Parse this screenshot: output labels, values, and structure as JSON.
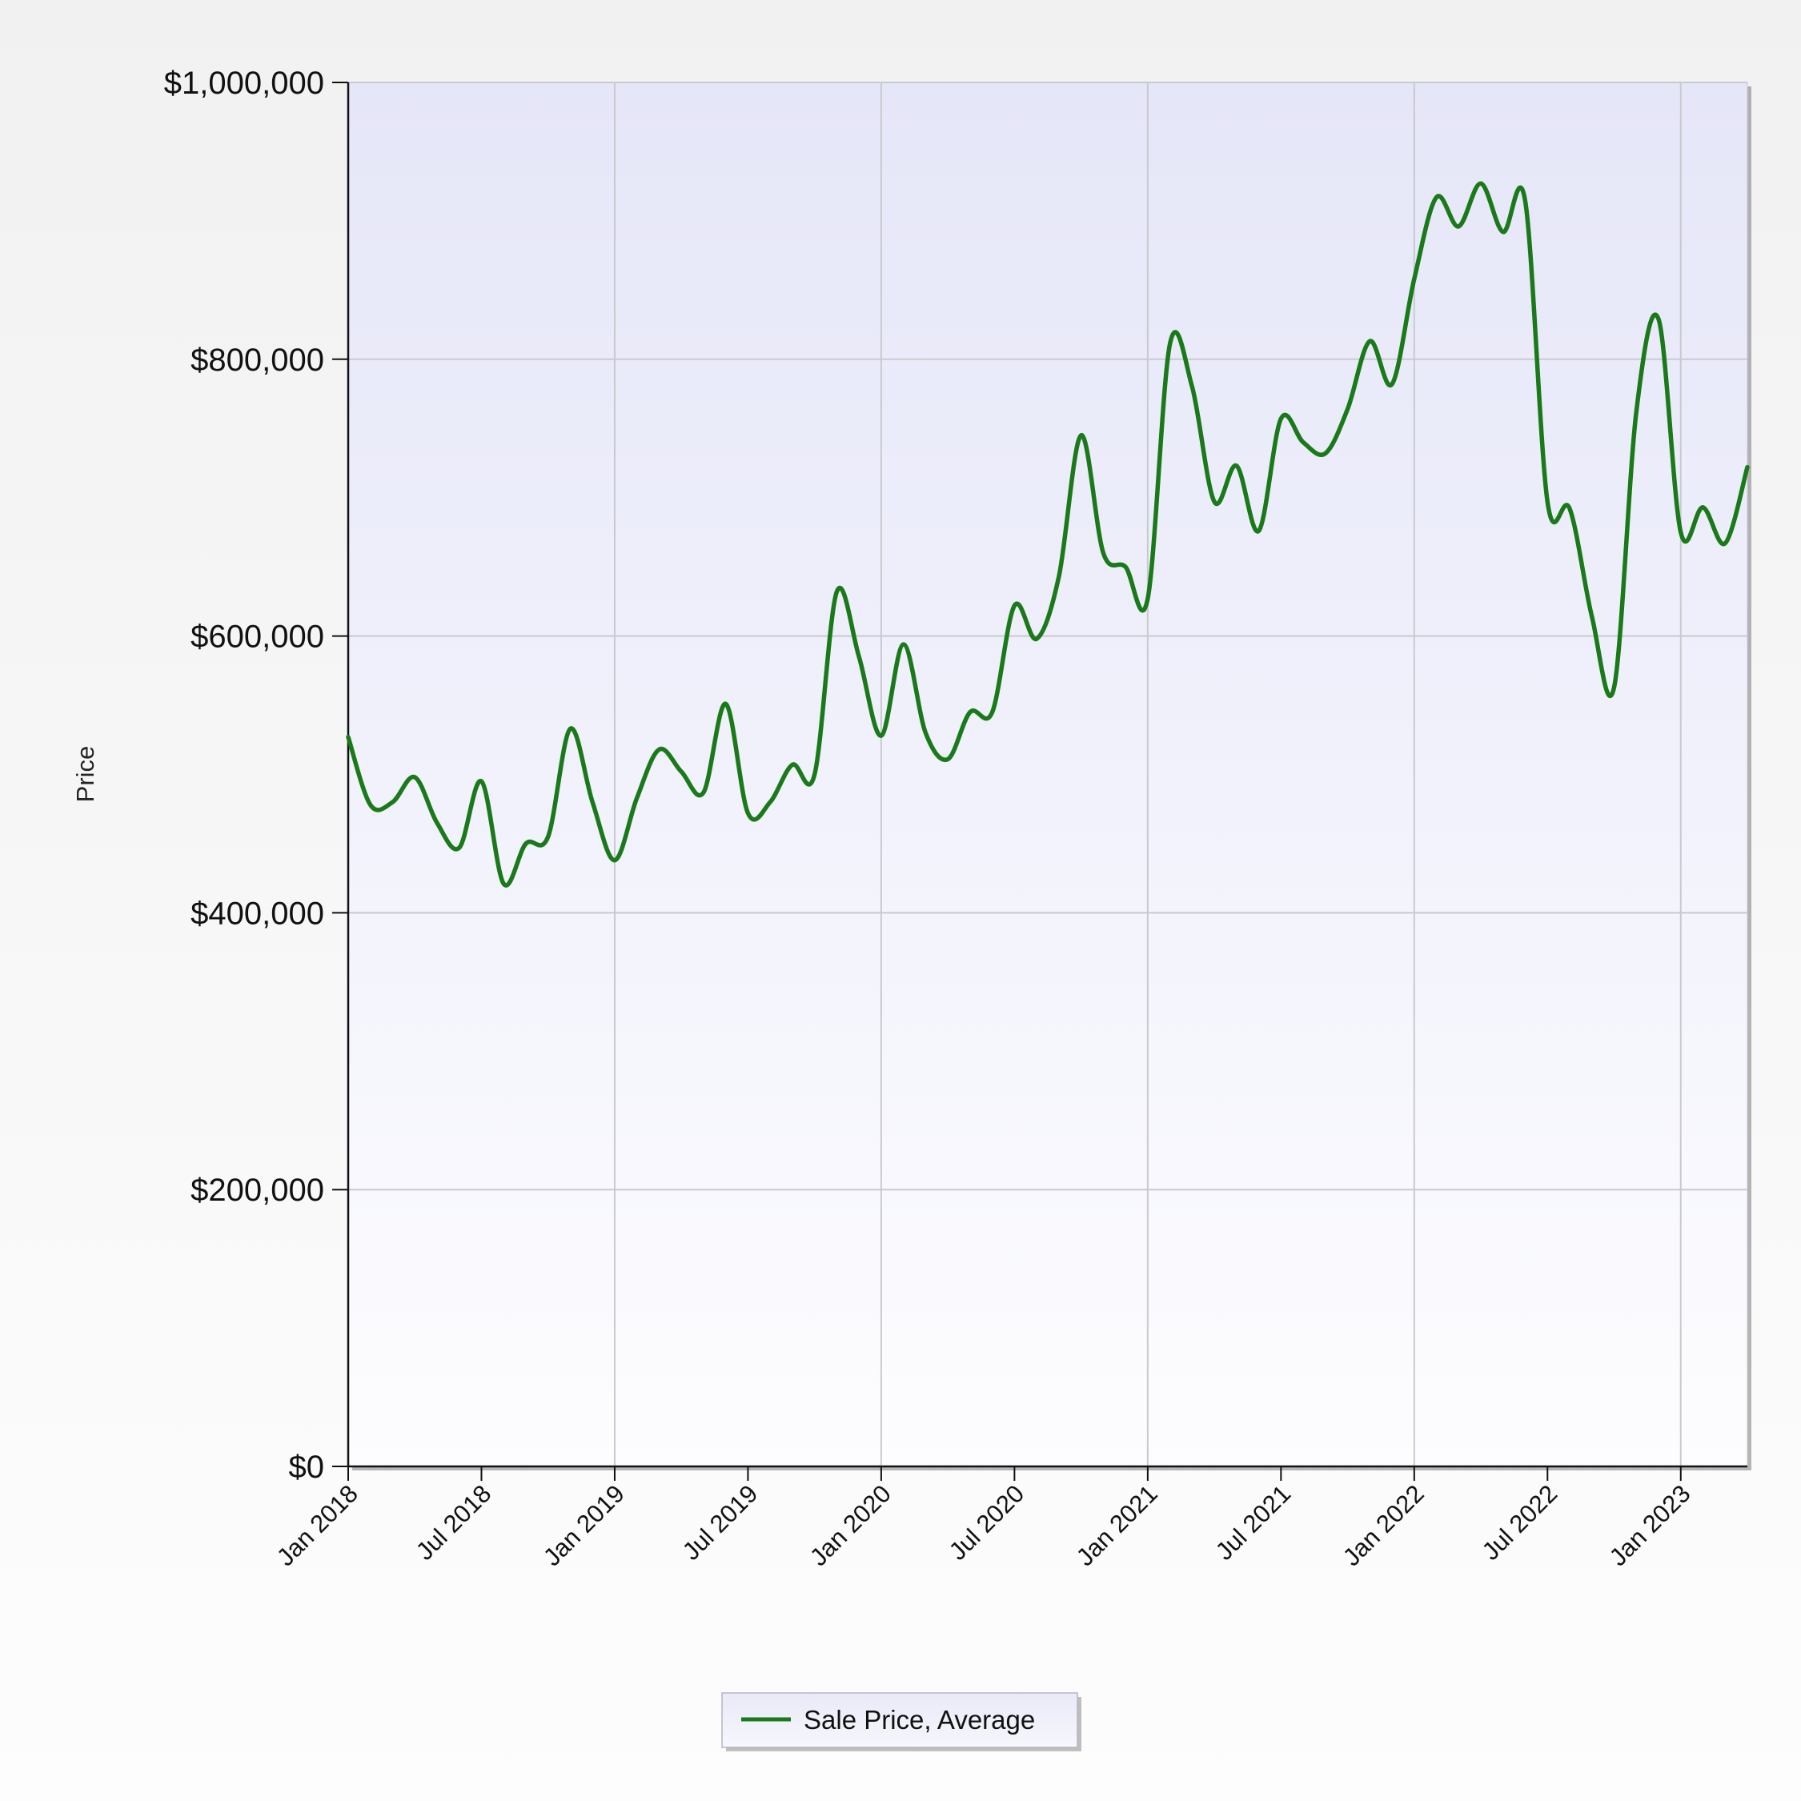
{
  "chart_data": {
    "type": "line",
    "title": "",
    "xlabel": "",
    "ylabel": "Price",
    "ylim": [
      0,
      1000000
    ],
    "xlim": [
      "2018-01",
      "2023-04"
    ],
    "y_tick_values": [
      0,
      200000,
      400000,
      600000,
      800000,
      1000000
    ],
    "y_tick_labels": [
      "$0",
      "$200,000",
      "$400,000",
      "$600,000",
      "$800,000",
      "$1,000,000"
    ],
    "x_tick_values": [
      "2018-01",
      "2018-07",
      "2019-01",
      "2019-07",
      "2020-01",
      "2020-07",
      "2021-01",
      "2021-07",
      "2022-01",
      "2022-07",
      "2023-01"
    ],
    "x_tick_labels": [
      "Jan 2018",
      "Jul 2018",
      "Jan 2019",
      "Jul 2019",
      "Jan 2020",
      "Jul 2020",
      "Jan 2021",
      "Jul 2021",
      "Jan 2022",
      "Jul 2022",
      "Jan 2023"
    ],
    "grid": true,
    "legend_position": "bottom-center",
    "x": [
      "2018-01",
      "2018-02",
      "2018-03",
      "2018-04",
      "2018-05",
      "2018-06",
      "2018-07",
      "2018-08",
      "2018-09",
      "2018-10",
      "2018-11",
      "2018-12",
      "2019-01",
      "2019-02",
      "2019-03",
      "2019-04",
      "2019-05",
      "2019-06",
      "2019-07",
      "2019-08",
      "2019-09",
      "2019-10",
      "2019-11",
      "2019-12",
      "2020-01",
      "2020-02",
      "2020-03",
      "2020-04",
      "2020-05",
      "2020-06",
      "2020-07",
      "2020-08",
      "2020-09",
      "2020-10",
      "2020-11",
      "2020-12",
      "2021-01",
      "2021-02",
      "2021-03",
      "2021-04",
      "2021-05",
      "2021-06",
      "2021-07",
      "2021-08",
      "2021-09",
      "2021-10",
      "2021-11",
      "2021-12",
      "2022-01",
      "2022-02",
      "2022-03",
      "2022-04",
      "2022-05",
      "2022-06",
      "2022-07",
      "2022-08",
      "2022-09",
      "2022-10",
      "2022-11",
      "2022-12",
      "2023-01",
      "2023-02",
      "2023-03",
      "2023-04"
    ],
    "series": [
      {
        "name": "Sale Price, Average",
        "color": "#1a7a1a",
        "values": [
          527000,
          478000,
          480000,
          498000,
          465000,
          447000,
          495000,
          421000,
          450000,
          455000,
          533000,
          480000,
          438000,
          483000,
          518000,
          502000,
          487000,
          551000,
          472000,
          480000,
          507000,
          500000,
          632000,
          585000,
          528000,
          594000,
          530000,
          511000,
          545000,
          545000,
          622000,
          598000,
          643000,
          745000,
          660000,
          650000,
          627000,
          811000,
          780000,
          697000,
          723000,
          676000,
          757000,
          740000,
          732000,
          764000,
          813000,
          782000,
          858000,
          917000,
          896000,
          927000,
          892000,
          914000,
          697000,
          692000,
          614000,
          563000,
          762000,
          829000,
          675000,
          693000,
          667000,
          722000
        ]
      }
    ]
  }
}
